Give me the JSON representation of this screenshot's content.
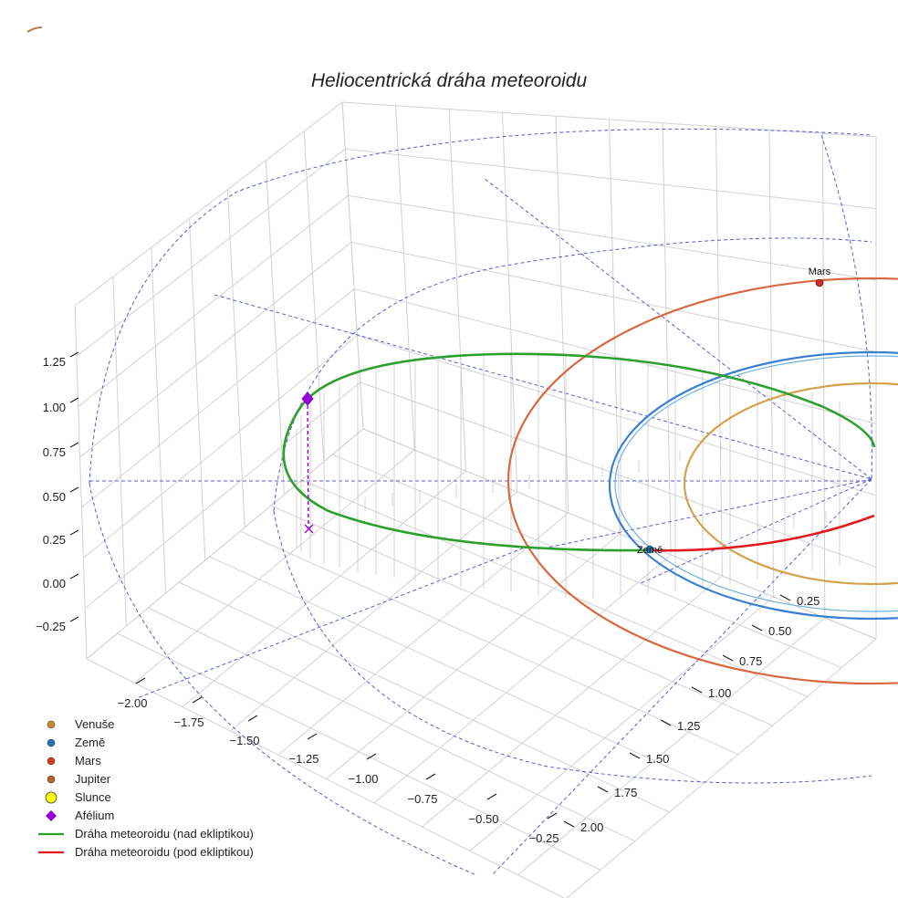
{
  "chart_data": {
    "type": "line3d",
    "title": "Heliocentrická dráha meteoroidu",
    "x_ticks": [
      "−2.00",
      "−1.75",
      "−1.50",
      "−1.25",
      "−1.00",
      "−0.75",
      "−0.50",
      "−0.25"
    ],
    "y_ticks": [
      "0.25",
      "0.50",
      "0.75",
      "1.00",
      "1.25",
      "1.50",
      "1.75",
      "2.00"
    ],
    "z_ticks": [
      "1.25",
      "1.00",
      "0.75",
      "0.50",
      "0.25",
      "0.00",
      "−0.25"
    ],
    "xlim": [
      -2.2,
      0.0
    ],
    "ylim": [
      0.0,
      2.1
    ],
    "zlim": [
      -0.35,
      1.45
    ],
    "orbits": [
      {
        "name": "Venuše",
        "color": "#d4a24c"
      },
      {
        "name": "Země",
        "color": "#3a7fd0"
      },
      {
        "name": "Mars",
        "color": "#d9673f"
      }
    ],
    "planets": [
      {
        "name": "Země",
        "label": "Země",
        "color": "#1f77b4"
      },
      {
        "name": "Mars",
        "label": "Mars",
        "color": "#d62728"
      }
    ],
    "series": [
      {
        "name": "Dráha meteoroidu (nad ekliptikou)",
        "color": "#2ca02c"
      },
      {
        "name": "Dráha meteoroidu (pod ekliptikou)",
        "color": "#e41a1c"
      }
    ],
    "aphelion": {
      "name": "Afélium",
      "color": "#9400d3"
    },
    "legend": [
      {
        "label": "Venuše",
        "marker": "circle",
        "color": "#d08a2c"
      },
      {
        "label": "Země",
        "marker": "circle",
        "color": "#1f77b4"
      },
      {
        "label": "Mars",
        "marker": "circle",
        "color": "#d2401a"
      },
      {
        "label": "Jupiter",
        "marker": "circle",
        "color": "#b8622c"
      },
      {
        "label": "Slunce",
        "marker": "circle-big",
        "color": "#ffff00"
      },
      {
        "label": "Afélium",
        "marker": "diamond",
        "color": "#9400d3"
      },
      {
        "label": "Dráha meteoroidu (nad ekliptikou)",
        "marker": "line",
        "color": "#2ca02c"
      },
      {
        "label": "Dráha meteoroidu (pod ekliptikou)",
        "marker": "line",
        "color": "#e41a1c"
      }
    ],
    "legend_position": "bottom-left"
  }
}
